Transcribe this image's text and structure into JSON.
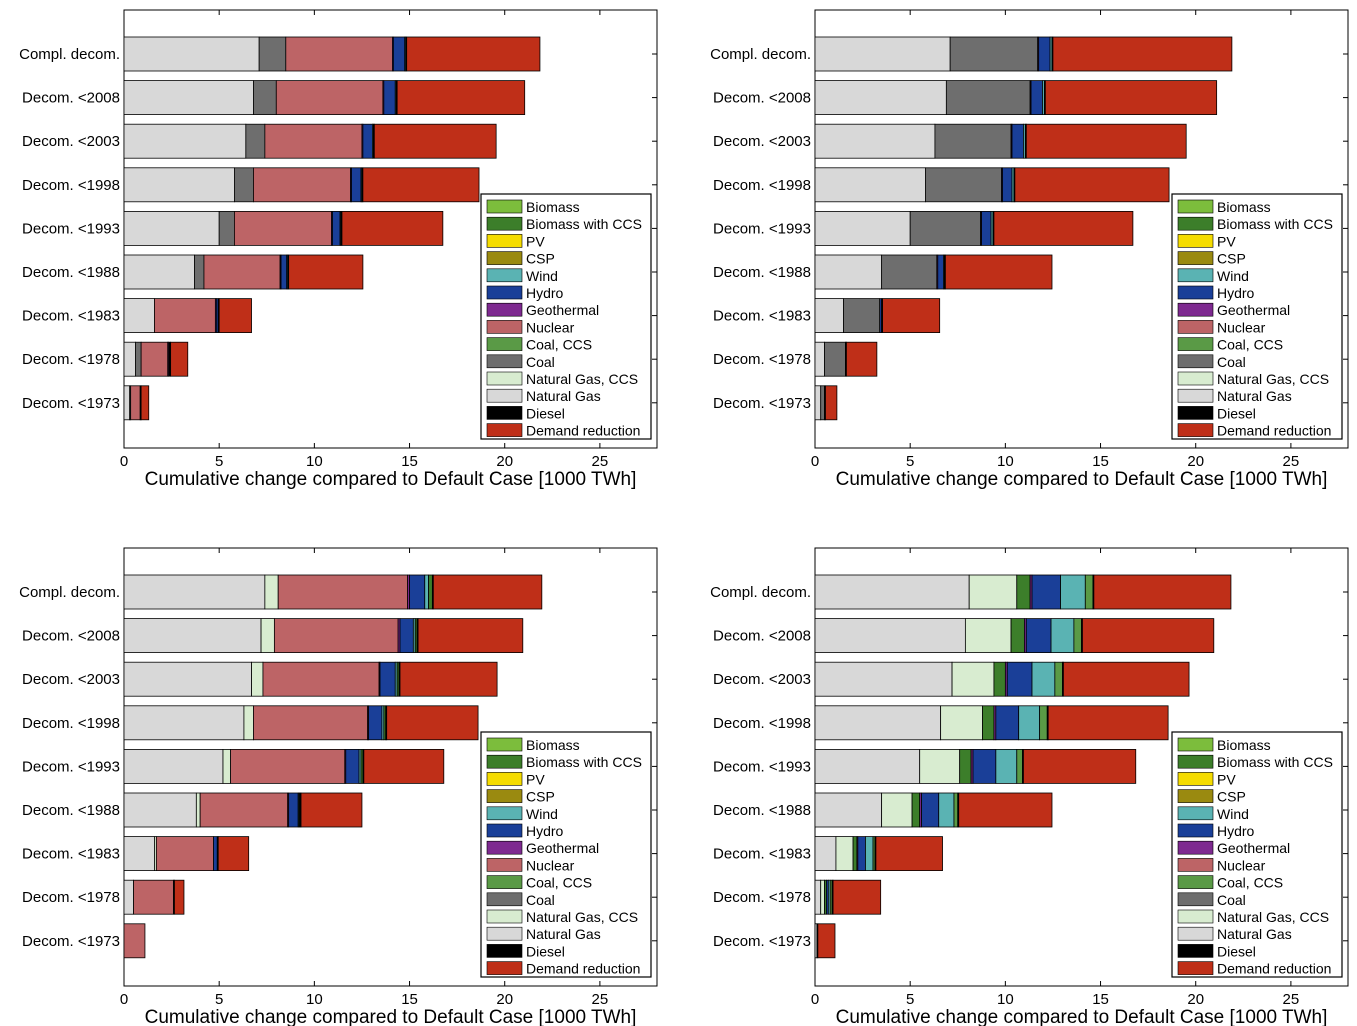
{
  "colors": {
    "Biomass": "#7cbd3c",
    "Biomass with CCS": "#3c7e2a",
    "PV": "#f5dc00",
    "CSP": "#9a8a10",
    "Wind": "#5ab3b3",
    "Hydro": "#1a3f98",
    "Geothermal": "#7e2990",
    "Nuclear": "#bd6466",
    "Coal, CCS": "#5a9a46",
    "Coal": "#6e6e6e",
    "Natural Gas, CCS": "#d8ecd0",
    "Natural Gas": "#d8d8d8",
    "Diesel": "#000000",
    "Demand reduction": "#bf2f18"
  },
  "chart_data": [
    {
      "type": "bar",
      "orientation": "horizontal",
      "stacked": true,
      "categories": [
        "Compl. decom.",
        "Decom. <2008",
        "Decom. <2003",
        "Decom. <1998",
        "Decom. <1993",
        "Decom. <1988",
        "Decom. <1983",
        "Decom. <1978",
        "Decom. <1973"
      ],
      "xlabel": "Cumulative change compared to Default Case [1000 TWh]",
      "xlim": [
        0,
        28
      ],
      "xticks": [
        "0",
        "5",
        "10",
        "15",
        "20",
        "25"
      ],
      "legend": [
        "Biomass",
        "Biomass with CCS",
        "PV",
        "CSP",
        "Wind",
        "Hydro",
        "Geothermal",
        "Nuclear",
        "Coal, CCS",
        "Coal",
        "Natural Gas, CCS",
        "Natural Gas",
        "Diesel",
        "Demand reduction"
      ],
      "legend_position": "lower right",
      "series": [
        {
          "name": "Natural Gas",
          "values": [
            7.1,
            6.8,
            6.4,
            5.8,
            5.0,
            3.7,
            1.6,
            0.6,
            0.3
          ]
        },
        {
          "name": "Coal",
          "values": [
            1.4,
            1.2,
            1.0,
            1.0,
            0.8,
            0.5,
            0.0,
            0.3,
            0.05
          ]
        },
        {
          "name": "Nuclear",
          "values": [
            5.6,
            5.6,
            5.1,
            5.1,
            5.1,
            4.0,
            3.2,
            1.4,
            0.5
          ]
        },
        {
          "name": "Geothermal",
          "values": [
            0.05,
            0.05,
            0.05,
            0.05,
            0.05,
            0.05,
            0.05,
            0.05,
            0.0
          ]
        },
        {
          "name": "Hydro",
          "values": [
            0.6,
            0.6,
            0.5,
            0.5,
            0.4,
            0.3,
            0.1,
            0.0,
            0.0
          ]
        },
        {
          "name": "Wind",
          "values": [
            0.05,
            0.05,
            0.05,
            0.05,
            0.05,
            0.05,
            0.0,
            0.0,
            0.0
          ]
        },
        {
          "name": "Diesel",
          "values": [
            0.05,
            0.05,
            0.05,
            0.05,
            0.05,
            0.05,
            0.05,
            0.1,
            0.05
          ]
        },
        {
          "name": "Demand reduction",
          "values": [
            7.0,
            6.7,
            6.4,
            6.1,
            5.3,
            3.9,
            1.7,
            0.9,
            0.4
          ]
        }
      ]
    },
    {
      "type": "bar",
      "orientation": "horizontal",
      "stacked": true,
      "categories": [
        "Compl. decom.",
        "Decom. <2008",
        "Decom. <2003",
        "Decom. <1998",
        "Decom. <1993",
        "Decom. <1988",
        "Decom. <1983",
        "Decom. <1978",
        "Decom. <1973"
      ],
      "xlabel": "Cumulative change compared to Default Case [1000 TWh]",
      "xlim": [
        0,
        28
      ],
      "xticks": [
        "0",
        "5",
        "10",
        "15",
        "20",
        "25"
      ],
      "legend": [
        "Biomass",
        "Biomass with CCS",
        "PV",
        "CSP",
        "Wind",
        "Hydro",
        "Geothermal",
        "Nuclear",
        "Coal, CCS",
        "Coal",
        "Natural Gas, CCS",
        "Natural Gas",
        "Diesel",
        "Demand reduction"
      ],
      "legend_position": "lower right",
      "series": [
        {
          "name": "Natural Gas",
          "values": [
            7.1,
            6.9,
            6.3,
            5.8,
            5.0,
            3.5,
            1.5,
            0.5,
            0.3
          ]
        },
        {
          "name": "Coal",
          "values": [
            4.6,
            4.4,
            4.0,
            4.0,
            3.7,
            2.9,
            1.9,
            1.1,
            0.2
          ]
        },
        {
          "name": "Geothermal",
          "values": [
            0.05,
            0.05,
            0.05,
            0.05,
            0.05,
            0.05,
            0.0,
            0.0,
            0.0
          ]
        },
        {
          "name": "Hydro",
          "values": [
            0.6,
            0.6,
            0.6,
            0.5,
            0.5,
            0.3,
            0.1,
            0.0,
            0.0
          ]
        },
        {
          "name": "Wind",
          "values": [
            0.1,
            0.1,
            0.1,
            0.1,
            0.1,
            0.05,
            0.0,
            0.0,
            0.0
          ]
        },
        {
          "name": "Diesel",
          "values": [
            0.05,
            0.05,
            0.05,
            0.05,
            0.05,
            0.05,
            0.05,
            0.05,
            0.05
          ]
        },
        {
          "name": "Demand reduction",
          "values": [
            9.4,
            9.0,
            8.4,
            8.1,
            7.3,
            5.6,
            3.0,
            1.6,
            0.6
          ]
        }
      ]
    },
    {
      "type": "bar",
      "orientation": "horizontal",
      "stacked": true,
      "categories": [
        "Compl. decom.",
        "Decom. <2008",
        "Decom. <2003",
        "Decom. <1998",
        "Decom. <1993",
        "Decom. <1988",
        "Decom. <1983",
        "Decom. <1978",
        "Decom. <1973"
      ],
      "xlabel": "Cumulative change compared to Default Case [1000 TWh]",
      "xlim": [
        0,
        28
      ],
      "xticks": [
        "0",
        "5",
        "10",
        "15",
        "20",
        "25"
      ],
      "legend": [
        "Biomass",
        "Biomass with CCS",
        "PV",
        "CSP",
        "Wind",
        "Hydro",
        "Geothermal",
        "Nuclear",
        "Coal, CCS",
        "Coal",
        "Natural Gas, CCS",
        "Natural Gas",
        "Diesel",
        "Demand reduction"
      ],
      "legend_position": "lower right",
      "series": [
        {
          "name": "Natural Gas",
          "values": [
            7.4,
            7.2,
            6.7,
            6.3,
            5.2,
            3.8,
            1.6,
            0.5,
            0.0
          ]
        },
        {
          "name": "Natural Gas, CCS",
          "values": [
            0.7,
            0.7,
            0.6,
            0.5,
            0.4,
            0.2,
            0.1,
            0.0,
            0.0
          ]
        },
        {
          "name": "Nuclear",
          "values": [
            6.8,
            6.5,
            6.1,
            6.0,
            6.0,
            4.6,
            3.0,
            2.1,
            1.1
          ]
        },
        {
          "name": "Geothermal",
          "values": [
            0.1,
            0.1,
            0.05,
            0.05,
            0.05,
            0.05,
            0.0,
            0.0,
            0.0
          ]
        },
        {
          "name": "Hydro",
          "values": [
            0.8,
            0.7,
            0.8,
            0.7,
            0.7,
            0.5,
            0.2,
            0.0,
            0.0
          ]
        },
        {
          "name": "Wind",
          "values": [
            0.2,
            0.1,
            0.1,
            0.1,
            0.1,
            0.05,
            0.0,
            0.0,
            0.0
          ]
        },
        {
          "name": "Biomass with CCS",
          "values": [
            0.2,
            0.1,
            0.1,
            0.1,
            0.1,
            0.05,
            0.0,
            0.0,
            0.0
          ]
        },
        {
          "name": "Diesel",
          "values": [
            0.05,
            0.05,
            0.05,
            0.05,
            0.05,
            0.05,
            0.05,
            0.05,
            0.0
          ]
        },
        {
          "name": "Demand reduction",
          "values": [
            5.7,
            5.5,
            5.1,
            4.8,
            4.2,
            3.2,
            1.6,
            0.5,
            0.0
          ]
        }
      ]
    },
    {
      "type": "bar",
      "orientation": "horizontal",
      "stacked": true,
      "categories": [
        "Compl. decom.",
        "Decom. <2008",
        "Decom. <2003",
        "Decom. <1998",
        "Decom. <1993",
        "Decom. <1988",
        "Decom. <1983",
        "Decom. <1978",
        "Decom. <1973"
      ],
      "xlabel": "Cumulative change compared to Default Case [1000 TWh]",
      "xlim": [
        0,
        28
      ],
      "xticks": [
        "0",
        "5",
        "10",
        "15",
        "20",
        "25"
      ],
      "legend": [
        "Biomass",
        "Biomass with CCS",
        "PV",
        "CSP",
        "Wind",
        "Hydro",
        "Geothermal",
        "Nuclear",
        "Coal, CCS",
        "Coal",
        "Natural Gas, CCS",
        "Natural Gas",
        "Diesel",
        "Demand reduction"
      ],
      "legend_position": "lower right",
      "series": [
        {
          "name": "Natural Gas",
          "values": [
            8.1,
            7.9,
            7.2,
            6.6,
            5.5,
            3.5,
            1.1,
            0.3,
            0.1
          ]
        },
        {
          "name": "Natural Gas, CCS",
          "values": [
            2.5,
            2.4,
            2.2,
            2.2,
            2.1,
            1.6,
            0.9,
            0.2,
            0.0
          ]
        },
        {
          "name": "Biomass with CCS",
          "values": [
            0.7,
            0.7,
            0.6,
            0.6,
            0.6,
            0.4,
            0.2,
            0.1,
            0.0
          ]
        },
        {
          "name": "Geothermal",
          "values": [
            0.1,
            0.1,
            0.1,
            0.1,
            0.1,
            0.1,
            0.05,
            0.0,
            0.0
          ]
        },
        {
          "name": "Hydro",
          "values": [
            1.5,
            1.3,
            1.3,
            1.2,
            1.2,
            0.9,
            0.4,
            0.1,
            0.0
          ]
        },
        {
          "name": "Wind",
          "values": [
            1.3,
            1.2,
            1.2,
            1.1,
            1.1,
            0.8,
            0.4,
            0.1,
            0.0
          ]
        },
        {
          "name": "Coal, CCS",
          "values": [
            0.4,
            0.4,
            0.4,
            0.4,
            0.3,
            0.2,
            0.1,
            0.1,
            0.0
          ]
        },
        {
          "name": "Diesel",
          "values": [
            0.05,
            0.05,
            0.05,
            0.05,
            0.05,
            0.05,
            0.05,
            0.05,
            0.05
          ]
        },
        {
          "name": "Demand reduction",
          "values": [
            7.2,
            6.9,
            6.6,
            6.3,
            5.9,
            4.9,
            3.5,
            2.5,
            0.9
          ]
        }
      ]
    }
  ]
}
